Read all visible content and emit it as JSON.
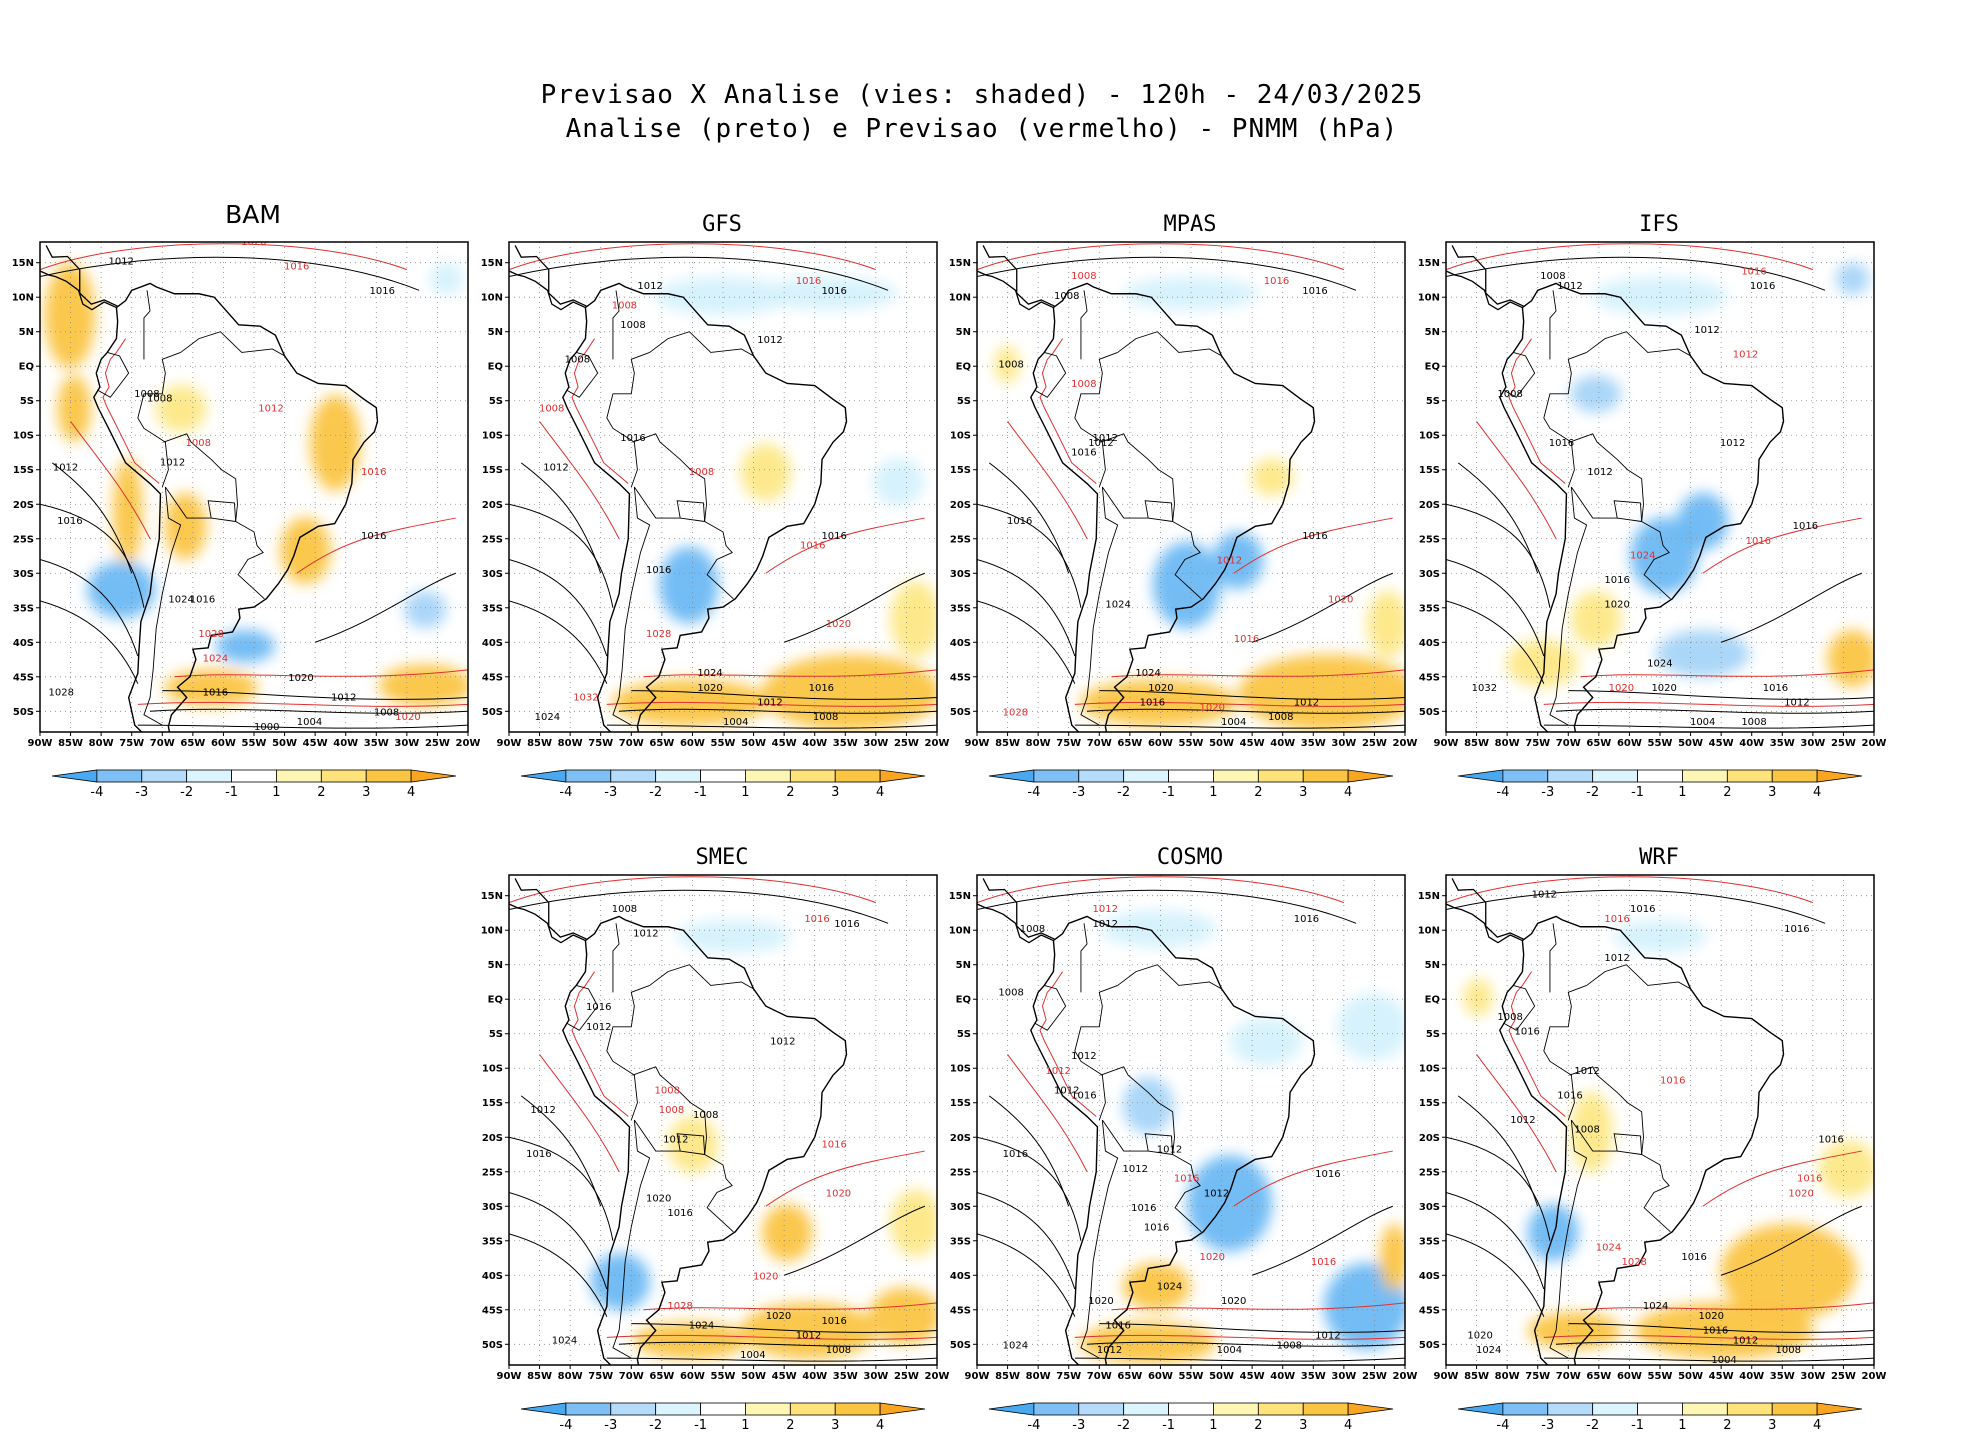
{
  "title_line1": "Previsao X Analise (vies: shaded) - 120h - 24/03/2025",
  "title_line2": "Analise (preto) e Previsao (vermelho) - PNMM (hPa)",
  "lat_labels": [
    "15N",
    "10N",
    "5N",
    "EQ",
    "5S",
    "10S",
    "15S",
    "20S",
    "25S",
    "30S",
    "35S",
    "40S",
    "45S",
    "50S"
  ],
  "lon_labels": [
    "90W",
    "85W",
    "80W",
    "75W",
    "70W",
    "65W",
    "60W",
    "55W",
    "50W",
    "45W",
    "40W",
    "35W",
    "30W",
    "25W",
    "20W"
  ],
  "colorbar_labels": [
    "-4",
    "-3",
    "-2",
    "-1",
    "1",
    "2",
    "3",
    "4"
  ],
  "colorbar_colors": [
    "#4aa8f0",
    "#7ec0f5",
    "#b4dcfa",
    "#dcf4fd",
    "#ffffff",
    "#fdf6b4",
    "#fde37a",
    "#fbc544",
    "#f9a520"
  ],
  "colors": {
    "analysis": "#000000",
    "forecast": "#e03030"
  },
  "panels": [
    {
      "id": "bam",
      "name": "BAM",
      "isobars": [
        {
          "t": "1020",
          "c": "f"
        },
        {
          "t": "1016",
          "c": "f"
        },
        {
          "t": "1012",
          "c": "a"
        },
        {
          "t": "1016",
          "c": "a"
        },
        {
          "t": "1012",
          "c": "f"
        },
        {
          "t": "1008",
          "c": "a"
        },
        {
          "t": "1008",
          "c": "a"
        },
        {
          "t": "1008",
          "c": "f"
        },
        {
          "t": "1012",
          "c": "a"
        },
        {
          "t": "1012",
          "c": "a"
        },
        {
          "t": "1016",
          "c": "a"
        },
        {
          "t": "1016",
          "c": "f"
        },
        {
          "t": "1016",
          "c": "a"
        },
        {
          "t": "1016",
          "c": "a"
        },
        {
          "t": "1024",
          "c": "a"
        },
        {
          "t": "1028",
          "c": "f"
        },
        {
          "t": "1024",
          "c": "f"
        },
        {
          "t": "1020",
          "c": "a"
        },
        {
          "t": "1016",
          "c": "a"
        },
        {
          "t": "1012",
          "c": "a"
        },
        {
          "t": "1008",
          "c": "a"
        },
        {
          "t": "1004",
          "c": "a"
        },
        {
          "t": "1028",
          "c": "a"
        },
        {
          "t": "1000",
          "c": "a"
        },
        {
          "t": "1020",
          "c": "f"
        }
      ]
    },
    {
      "id": "gfs",
      "name": "GFS",
      "isobars": [
        {
          "t": "1016",
          "c": "f"
        },
        {
          "t": "1016",
          "c": "a"
        },
        {
          "t": "1008",
          "c": "f"
        },
        {
          "t": "1012",
          "c": "a"
        },
        {
          "t": "1008",
          "c": "a"
        },
        {
          "t": "1012",
          "c": "a"
        },
        {
          "t": "1008",
          "c": "a"
        },
        {
          "t": "1008",
          "c": "f"
        },
        {
          "t": "1016",
          "c": "a"
        },
        {
          "t": "1012",
          "c": "a"
        },
        {
          "t": "1008",
          "c": "f"
        },
        {
          "t": "1016",
          "c": "f"
        },
        {
          "t": "1016",
          "c": "a"
        },
        {
          "t": "1016",
          "c": "a"
        },
        {
          "t": "1020",
          "c": "f"
        },
        {
          "t": "1028",
          "c": "f"
        },
        {
          "t": "1024",
          "c": "a"
        },
        {
          "t": "1020",
          "c": "a"
        },
        {
          "t": "1016",
          "c": "a"
        },
        {
          "t": "1012",
          "c": "a"
        },
        {
          "t": "1008",
          "c": "a"
        },
        {
          "t": "1004",
          "c": "a"
        },
        {
          "t": "1024",
          "c": "a"
        },
        {
          "t": "1032",
          "c": "f"
        }
      ]
    },
    {
      "id": "mpas",
      "name": "MPAS",
      "isobars": [
        {
          "t": "1016",
          "c": "f"
        },
        {
          "t": "1016",
          "c": "a"
        },
        {
          "t": "1008",
          "c": "f"
        },
        {
          "t": "1008",
          "c": "a"
        },
        {
          "t": "1008",
          "c": "a"
        },
        {
          "t": "1008",
          "c": "f"
        },
        {
          "t": "1012",
          "c": "a"
        },
        {
          "t": "1016",
          "c": "a"
        },
        {
          "t": "1012",
          "c": "a"
        },
        {
          "t": "1016",
          "c": "a"
        },
        {
          "t": "1016",
          "c": "a"
        },
        {
          "t": "1012",
          "c": "f"
        },
        {
          "t": "1024",
          "c": "a"
        },
        {
          "t": "1020",
          "c": "f"
        },
        {
          "t": "1016",
          "c": "f"
        },
        {
          "t": "1020",
          "c": "a"
        },
        {
          "t": "1016",
          "c": "a"
        },
        {
          "t": "1012",
          "c": "a"
        },
        {
          "t": "1008",
          "c": "a"
        },
        {
          "t": "1004",
          "c": "a"
        },
        {
          "t": "1024",
          "c": "a"
        },
        {
          "t": "1028",
          "c": "f"
        },
        {
          "t": "1020",
          "c": "f"
        }
      ]
    },
    {
      "id": "ifs",
      "name": "IFS",
      "isobars": [
        {
          "t": "1016",
          "c": "f"
        },
        {
          "t": "1016",
          "c": "a"
        },
        {
          "t": "1008",
          "c": "a"
        },
        {
          "t": "1012",
          "c": "a"
        },
        {
          "t": "1012",
          "c": "a"
        },
        {
          "t": "1012",
          "c": "f"
        },
        {
          "t": "1008",
          "c": "a"
        },
        {
          "t": "1016",
          "c": "a"
        },
        {
          "t": "1012",
          "c": "a"
        },
        {
          "t": "1012",
          "c": "a"
        },
        {
          "t": "1016",
          "c": "a"
        },
        {
          "t": "1016",
          "c": "f"
        },
        {
          "t": "1024",
          "c": "f"
        },
        {
          "t": "1016",
          "c": "a"
        },
        {
          "t": "1020",
          "c": "a"
        },
        {
          "t": "1024",
          "c": "a"
        },
        {
          "t": "1020",
          "c": "a"
        },
        {
          "t": "1016",
          "c": "a"
        },
        {
          "t": "1012",
          "c": "a"
        },
        {
          "t": "1008",
          "c": "a"
        },
        {
          "t": "1004",
          "c": "a"
        },
        {
          "t": "1032",
          "c": "a"
        },
        {
          "t": "1020",
          "c": "f"
        }
      ]
    },
    {
      "id": "smec",
      "name": "SMEC",
      "isobars": [
        {
          "t": "1016",
          "c": "f"
        },
        {
          "t": "1016",
          "c": "a"
        },
        {
          "t": "1008",
          "c": "a"
        },
        {
          "t": "1012",
          "c": "a"
        },
        {
          "t": "1012",
          "c": "a"
        },
        {
          "t": "1016",
          "c": "a"
        },
        {
          "t": "1012",
          "c": "a"
        },
        {
          "t": "1008",
          "c": "f"
        },
        {
          "t": "1008",
          "c": "a"
        },
        {
          "t": "1008",
          "c": "f"
        },
        {
          "t": "1012",
          "c": "a"
        },
        {
          "t": "1016",
          "c": "a"
        },
        {
          "t": "1012",
          "c": "a"
        },
        {
          "t": "1016",
          "c": "f"
        },
        {
          "t": "1020",
          "c": "a"
        },
        {
          "t": "1020",
          "c": "f"
        },
        {
          "t": "1016",
          "c": "a"
        },
        {
          "t": "1028",
          "c": "f"
        },
        {
          "t": "1024",
          "c": "a"
        },
        {
          "t": "1020",
          "c": "a"
        },
        {
          "t": "1016",
          "c": "a"
        },
        {
          "t": "1012",
          "c": "a"
        },
        {
          "t": "1008",
          "c": "a"
        },
        {
          "t": "1004",
          "c": "a"
        },
        {
          "t": "1024",
          "c": "a"
        },
        {
          "t": "1020",
          "c": "f"
        }
      ]
    },
    {
      "id": "cosmo",
      "name": "COSMO",
      "isobars": [
        {
          "t": "1016",
          "c": "a"
        },
        {
          "t": "1008",
          "c": "a"
        },
        {
          "t": "1012",
          "c": "a"
        },
        {
          "t": "1012",
          "c": "f"
        },
        {
          "t": "1008",
          "c": "a"
        },
        {
          "t": "1012",
          "c": "a"
        },
        {
          "t": "1012",
          "c": "f"
        },
        {
          "t": "1012",
          "c": "a"
        },
        {
          "t": "1016",
          "c": "a"
        },
        {
          "t": "1012",
          "c": "a"
        },
        {
          "t": "1016",
          "c": "a"
        },
        {
          "t": "1012",
          "c": "a"
        },
        {
          "t": "1016",
          "c": "f"
        },
        {
          "t": "1016",
          "c": "a"
        },
        {
          "t": "1016",
          "c": "a"
        },
        {
          "t": "1012",
          "c": "a"
        },
        {
          "t": "1016",
          "c": "a"
        },
        {
          "t": "1024",
          "c": "a"
        },
        {
          "t": "1020",
          "c": "a"
        },
        {
          "t": "1016",
          "c": "f"
        },
        {
          "t": "1020",
          "c": "a"
        },
        {
          "t": "1016",
          "c": "a"
        },
        {
          "t": "1012",
          "c": "a"
        },
        {
          "t": "1008",
          "c": "a"
        },
        {
          "t": "1004",
          "c": "a"
        },
        {
          "t": "1024",
          "c": "a"
        },
        {
          "t": "1012",
          "c": "a"
        },
        {
          "t": "1020",
          "c": "f"
        }
      ]
    },
    {
      "id": "wrf",
      "name": "WRF",
      "isobars": [
        {
          "t": "1012",
          "c": "a"
        },
        {
          "t": "1016",
          "c": "a"
        },
        {
          "t": "1016",
          "c": "f"
        },
        {
          "t": "1016",
          "c": "a"
        },
        {
          "t": "1012",
          "c": "a"
        },
        {
          "t": "1008",
          "c": "a"
        },
        {
          "t": "1016",
          "c": "a"
        },
        {
          "t": "1012",
          "c": "a"
        },
        {
          "t": "1016",
          "c": "f"
        },
        {
          "t": "1016",
          "c": "a"
        },
        {
          "t": "1012",
          "c": "a"
        },
        {
          "t": "1008",
          "c": "a"
        },
        {
          "t": "1016",
          "c": "a"
        },
        {
          "t": "1020",
          "c": "f"
        },
        {
          "t": "1016",
          "c": "a"
        },
        {
          "t": "1024",
          "c": "f"
        },
        {
          "t": "1024",
          "c": "a"
        },
        {
          "t": "1028",
          "c": "f"
        },
        {
          "t": "1020",
          "c": "a"
        },
        {
          "t": "1016",
          "c": "a"
        },
        {
          "t": "1012",
          "c": "a"
        },
        {
          "t": "1008",
          "c": "a"
        },
        {
          "t": "1004",
          "c": "a"
        },
        {
          "t": "1024",
          "c": "a"
        },
        {
          "t": "1020",
          "c": "a"
        },
        {
          "t": "1016",
          "c": "f"
        }
      ]
    }
  ]
}
